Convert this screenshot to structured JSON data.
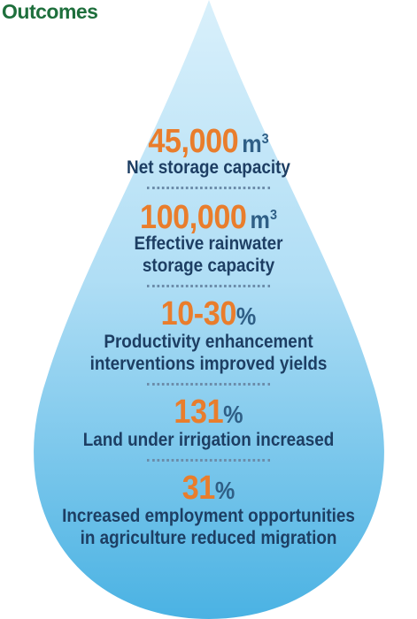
{
  "title": "Outcomes",
  "colors": {
    "title": "#1e6f3c",
    "number": "#e97d2c",
    "unit": "#2f5f86",
    "label": "#1d3e63",
    "drop_top": "#d9f0fb",
    "drop_bottom": "#4ab2e3"
  },
  "stats": [
    {
      "number": "45,000",
      "unit": "m",
      "unit_sup": "3",
      "label_lines": [
        "Net storage capacity"
      ]
    },
    {
      "number": "100,000",
      "unit": "m",
      "unit_sup": "3",
      "label_lines": [
        "Effective rainwater",
        "storage capacity"
      ]
    },
    {
      "number": "10-30",
      "unit": "%",
      "unit_sup": "",
      "label_lines": [
        "Productivity enhancement",
        "interventions improved yields"
      ]
    },
    {
      "number": "131",
      "unit": "%",
      "unit_sup": "",
      "label_lines": [
        "Land under irrigation increased"
      ]
    },
    {
      "number": "31",
      "unit": "%",
      "unit_sup": "",
      "label_lines": [
        "Increased employment opportunities",
        "in agriculture reduced migration"
      ]
    }
  ]
}
